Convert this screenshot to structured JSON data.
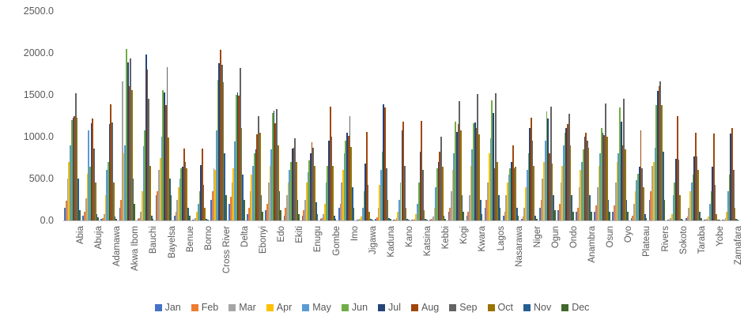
{
  "chart_data": {
    "type": "bar",
    "title": "",
    "xlabel": "",
    "ylabel": "",
    "grid": false,
    "legend_position": "bottom",
    "ylim": [
      0,
      2500
    ],
    "yticks": [
      0,
      500,
      1000,
      1500,
      2000,
      2500
    ],
    "ytick_labels": [
      "0.0",
      "500.0",
      "1000.0",
      "1500.0",
      "2000.0",
      "2500.0"
    ],
    "axis_line_color": "#BFBFBF",
    "text_color": "#595959",
    "categories": [
      "Abia",
      "Abuja",
      "Adamawa",
      "Akwa Ibom",
      "Bauchi",
      "Bayelsa",
      "Benue",
      "Borno",
      "Cross River",
      "Delta",
      "Ebonyi",
      "Edo",
      "Ekiti",
      "Enugu",
      "Gombe",
      "Imo",
      "Jigawa",
      "Kaduna",
      "Kano",
      "Katsina",
      "Kebbi",
      "Kogi",
      "Kwara",
      "Lagos",
      "Nasarawa",
      "Niger",
      "Ogun",
      "Ondo",
      "Anambra",
      "Osun",
      "Oyo",
      "Plateau",
      "Rivers",
      "Sokoto",
      "Taraba",
      "Yobe",
      "Zamafara"
    ],
    "series": [
      {
        "name": "Jan",
        "color": "#4472C4",
        "values": [
          150,
          60,
          20,
          150,
          20,
          300,
          60,
          10,
          250,
          200,
          80,
          120,
          60,
          60,
          20,
          150,
          10,
          20,
          10,
          10,
          10,
          100,
          60,
          150,
          60,
          20,
          150,
          120,
          100,
          100,
          100,
          30,
          250,
          10,
          30,
          5,
          10
        ]
      },
      {
        "name": "Feb",
        "color": "#ED7D31",
        "values": [
          240,
          100,
          30,
          250,
          30,
          350,
          100,
          10,
          350,
          280,
          150,
          200,
          150,
          120,
          30,
          200,
          10,
          40,
          10,
          10,
          20,
          150,
          100,
          250,
          100,
          50,
          250,
          200,
          150,
          180,
          180,
          60,
          350,
          10,
          50,
          5,
          10
        ]
      },
      {
        "name": "Mar",
        "color": "#A5A5A5",
        "values": [
          500,
          260,
          80,
          1660,
          100,
          600,
          250,
          30,
          620,
          450,
          350,
          450,
          300,
          250,
          80,
          450,
          20,
          150,
          30,
          20,
          50,
          350,
          300,
          450,
          300,
          150,
          500,
          450,
          400,
          400,
          450,
          200,
          650,
          30,
          150,
          15,
          30
        ]
      },
      {
        "name": "Apr",
        "color": "#FFC000",
        "values": [
          700,
          560,
          300,
          800,
          350,
          750,
          400,
          100,
          600,
          620,
          550,
          650,
          450,
          450,
          200,
          600,
          50,
          420,
          100,
          80,
          150,
          600,
          650,
          800,
          450,
          400,
          700,
          650,
          600,
          650,
          700,
          350,
          700,
          80,
          350,
          50,
          100
        ]
      },
      {
        "name": "May",
        "color": "#5B9BD5",
        "values": [
          900,
          1080,
          600,
          900,
          890,
          1000,
          500,
          200,
          1080,
          945,
          650,
          850,
          600,
          580,
          450,
          800,
          150,
          600,
          250,
          200,
          400,
          800,
          850,
          980,
          550,
          600,
          950,
          900,
          700,
          800,
          800,
          480,
          870,
          300,
          450,
          200,
          350
        ]
      },
      {
        "name": "Jun",
        "color": "#70AD47",
        "values": [
          1200,
          640,
          700,
          2050,
          1080,
          1560,
          620,
          350,
          1680,
          1500,
          800,
          1280,
          700,
          720,
          650,
          950,
          350,
          820,
          450,
          450,
          620,
          1180,
          1160,
          1430,
          620,
          800,
          1300,
          1050,
          850,
          1100,
          1350,
          560,
          1380,
          450,
          550,
          350,
          550
        ]
      },
      {
        "name": "Jul",
        "color": "#264478",
        "values": [
          1230,
          1160,
          1150,
          1890,
          1980,
          1530,
          640,
          660,
          1880,
          1530,
          850,
          1310,
          860,
          800,
          950,
          1050,
          680,
          1390,
          1080,
          820,
          700,
          1060,
          1170,
          1280,
          700,
          1100,
          1220,
          1100,
          1000,
          1050,
          1180,
          640,
          1550,
          740,
          760,
          640,
          1040
        ]
      },
      {
        "name": "Aug",
        "color": "#9E480E",
        "values": [
          1250,
          1220,
          1390,
          1600,
          1800,
          1380,
          860,
          860,
          2040,
          1490,
          1030,
          1160,
          870,
          930,
          1360,
          1010,
          1060,
          1350,
          1180,
          1190,
          820,
          1150,
          1100,
          620,
          900,
          1230,
          800,
          1150,
          1050,
          1020,
          900,
          1080,
          1600,
          1250,
          1050,
          1040,
          1100
        ]
      },
      {
        "name": "Sep",
        "color": "#636363",
        "values": [
          1520,
          860,
          1170,
          1930,
          1450,
          1830,
          700,
          420,
          1860,
          1820,
          1250,
          1330,
          980,
          870,
          1000,
          1250,
          420,
          620,
          650,
          600,
          1000,
          1420,
          1510,
          1520,
          620,
          950,
          1360,
          1270,
          950,
          1400,
          1450,
          620,
          1660,
          730,
          760,
          420,
          600
        ]
      },
      {
        "name": "Oct",
        "color": "#997300",
        "values": [
          1230,
          450,
          450,
          1560,
          650,
          990,
          620,
          150,
          1650,
          1100,
          1050,
          900,
          700,
          650,
          650,
          880,
          100,
          250,
          150,
          120,
          640,
          1080,
          1030,
          700,
          640,
          650,
          680,
          900,
          870,
          1000,
          850,
          400,
          1380,
          300,
          600,
          80,
          150
        ]
      },
      {
        "name": "Nov",
        "color": "#255E91",
        "values": [
          500,
          80,
          50,
          500,
          60,
          500,
          150,
          20,
          800,
          550,
          300,
          350,
          250,
          220,
          60,
          400,
          20,
          30,
          20,
          20,
          60,
          300,
          250,
          300,
          150,
          60,
          300,
          300,
          300,
          250,
          250,
          80,
          820,
          20,
          100,
          10,
          20
        ]
      },
      {
        "name": "Dec",
        "color": "#43682B",
        "values": [
          120,
          40,
          20,
          200,
          20,
          300,
          60,
          10,
          300,
          250,
          100,
          120,
          80,
          80,
          20,
          150,
          10,
          20,
          10,
          10,
          20,
          100,
          80,
          150,
          60,
          20,
          120,
          100,
          100,
          100,
          100,
          30,
          250,
          10,
          30,
          5,
          10
        ]
      }
    ]
  }
}
